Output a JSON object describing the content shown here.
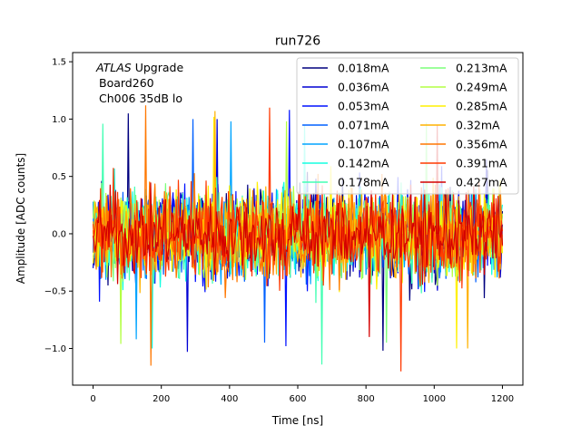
{
  "chart_data": {
    "type": "line",
    "title": "run726",
    "xlabel": "Time [ns]",
    "ylabel": "Amplitude [ADC counts]",
    "xlim": [
      -60,
      1260
    ],
    "ylim": [
      -1.32,
      1.58
    ],
    "xticks": [
      0,
      200,
      400,
      600,
      800,
      1000,
      1200
    ],
    "xtick_labels": [
      "0",
      "200",
      "400",
      "600",
      "800",
      "1000",
      "1200"
    ],
    "yticks": [
      -1.0,
      -0.5,
      0.0,
      0.5,
      1.0,
      1.5
    ],
    "ytick_labels": [
      "−1.0",
      "−0.5",
      "0.0",
      "0.5",
      "1.0",
      "1.5"
    ],
    "x_range": [
      0,
      1200
    ],
    "sample_step_ns": 3.125,
    "signal_note": "noise traces centred on 0; approximate extremes per series",
    "annotation": {
      "italic": "ATLAS",
      "rest": " Upgrade",
      "line2": "Board260",
      "line3": "Ch006 35dB lo"
    },
    "legend_position": "top-right",
    "legend_columns": 2,
    "series": [
      {
        "name": "0.018mA",
        "color": "#00007f",
        "min": -1.02,
        "max": 1.05
      },
      {
        "name": "0.036mA",
        "color": "#0000d4",
        "min": -1.03,
        "max": 1.0
      },
      {
        "name": "0.053mA",
        "color": "#0010ff",
        "min": -0.98,
        "max": 1.08
      },
      {
        "name": "0.071mA",
        "color": "#0060ff",
        "min": -0.95,
        "max": 1.0
      },
      {
        "name": "0.107mA",
        "color": "#00a4ff",
        "min": -0.92,
        "max": 0.98
      },
      {
        "name": "0.142mA",
        "color": "#15ffe1",
        "min": -1.0,
        "max": 0.95
      },
      {
        "name": "0.178mA",
        "color": "#43ffb3",
        "min": -1.14,
        "max": 0.96
      },
      {
        "name": "0.213mA",
        "color": "#7dff7a",
        "min": -0.95,
        "max": 0.97
      },
      {
        "name": "0.249mA",
        "color": "#b3ff43",
        "min": -0.96,
        "max": 0.98
      },
      {
        "name": "0.285mA",
        "color": "#fff000",
        "min": -1.0,
        "max": 1.02
      },
      {
        "name": "0.32mA",
        "color": "#ffb200",
        "min": -1.0,
        "max": 1.07
      },
      {
        "name": "0.356mA",
        "color": "#ff7700",
        "min": -1.15,
        "max": 1.12
      },
      {
        "name": "0.391mA",
        "color": "#ff3800",
        "min": -1.2,
        "max": 1.1
      },
      {
        "name": "0.427mA",
        "color": "#d40000",
        "min": -0.9,
        "max": 0.95
      }
    ]
  }
}
